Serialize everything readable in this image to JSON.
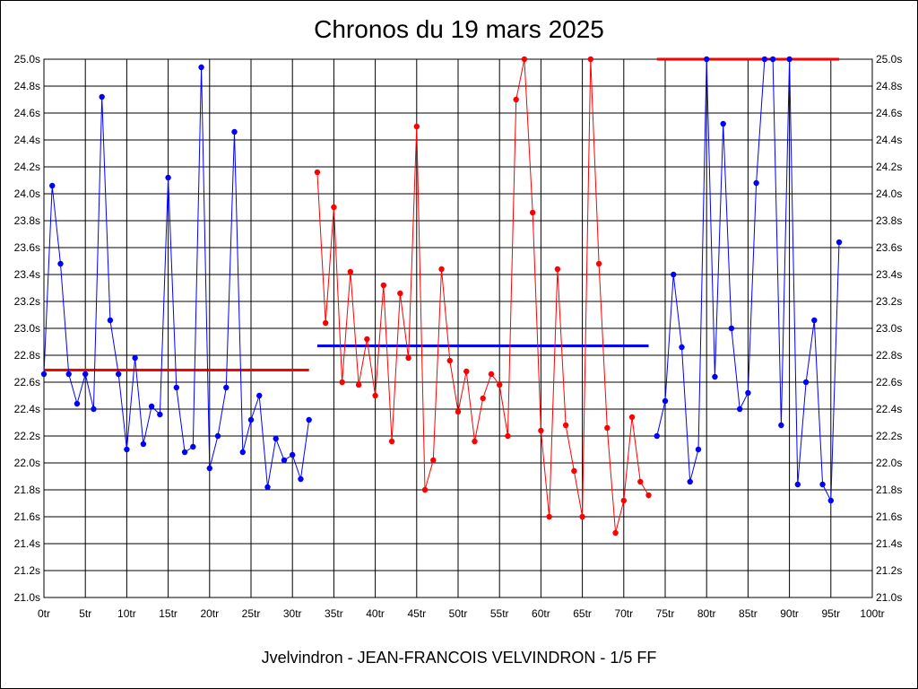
{
  "chart_data": {
    "type": "line",
    "title": "Chronos du 19 mars 2025",
    "footer": "Jvelvindron - JEAN-FRANCOIS VELVINDRON - 1/5 FF",
    "xlabel": "",
    "ylabel": "",
    "xlim": [
      0,
      100
    ],
    "ylim": [
      21.0,
      25.0
    ],
    "grid": true,
    "x_ticks": [
      0,
      5,
      10,
      15,
      20,
      25,
      30,
      35,
      40,
      45,
      50,
      55,
      60,
      65,
      70,
      75,
      80,
      85,
      90,
      95,
      100
    ],
    "x_tick_labels": [
      "0tr",
      "5tr",
      "10tr",
      "15tr",
      "20tr",
      "25tr",
      "30tr",
      "35tr",
      "40tr",
      "45tr",
      "50tr",
      "55tr",
      "60tr",
      "65tr",
      "70tr",
      "75tr",
      "80tr",
      "85tr",
      "90tr",
      "95tr",
      "100tr"
    ],
    "y_ticks": [
      21.0,
      21.2,
      21.4,
      21.6,
      21.8,
      22.0,
      22.2,
      22.4,
      22.6,
      22.8,
      23.0,
      23.2,
      23.4,
      23.6,
      23.8,
      24.0,
      24.2,
      24.4,
      24.6,
      24.8,
      25.0
    ],
    "y_tick_labels": [
      "21.0s",
      "21.2s",
      "21.4s",
      "21.6s",
      "21.8s",
      "22.0s",
      "22.2s",
      "22.4s",
      "22.6s",
      "22.8s",
      "23.0s",
      "23.2s",
      "23.4s",
      "23.6s",
      "23.8s",
      "24.0s",
      "24.2s",
      "24.4s",
      "24.6s",
      "24.8s",
      "25.0s"
    ],
    "series": [
      {
        "color": "#0000ff",
        "x": [
          0,
          1,
          2,
          3,
          4,
          5,
          6,
          7,
          8,
          9,
          10,
          11,
          12,
          13,
          14,
          15,
          16,
          17,
          18,
          19,
          20,
          21,
          22,
          23,
          24,
          25,
          26,
          27,
          28,
          29,
          30,
          31,
          32
        ],
        "values": [
          22.66,
          24.06,
          23.48,
          22.66,
          22.44,
          22.66,
          22.4,
          24.72,
          23.06,
          22.66,
          22.1,
          22.78,
          22.14,
          22.42,
          22.36,
          24.12,
          22.56,
          22.08,
          22.12,
          24.94,
          21.96,
          22.2,
          22.56,
          24.46,
          22.08,
          22.32,
          22.5,
          21.82,
          22.18,
          22.02,
          22.06,
          21.88,
          22.32
        ]
      },
      {
        "color": "#ff0000",
        "x": [
          33,
          34,
          35,
          36,
          37,
          38,
          39,
          40,
          41,
          42,
          43,
          44,
          45,
          46,
          47,
          48,
          49,
          50,
          51,
          52,
          53,
          54,
          55,
          56,
          57,
          58,
          59,
          60,
          61,
          62,
          63,
          64,
          65,
          66,
          67,
          68,
          69,
          70,
          71,
          72,
          73
        ],
        "values": [
          24.16,
          23.04,
          23.9,
          22.6,
          23.42,
          22.58,
          22.92,
          22.5,
          23.32,
          22.16,
          23.26,
          22.78,
          24.5,
          21.8,
          22.02,
          23.44,
          22.76,
          22.38,
          22.68,
          22.16,
          22.48,
          22.66,
          22.58,
          22.2,
          24.7,
          25.0,
          23.86,
          22.24,
          21.6,
          23.44,
          22.28,
          21.94,
          21.6,
          25.0,
          23.48,
          22.26,
          21.48,
          21.72,
          22.34,
          21.86,
          21.76
        ]
      },
      {
        "color": "#0000ff",
        "x": [
          74,
          75,
          76,
          77,
          78,
          79,
          80,
          81,
          82,
          83,
          84,
          85,
          86,
          87,
          88,
          89,
          90,
          91,
          92,
          93,
          94,
          95,
          96
        ],
        "values": [
          22.2,
          22.46,
          23.4,
          22.86,
          21.86,
          22.1,
          25.0,
          22.64,
          24.52,
          23.0,
          22.4,
          22.52,
          24.08,
          25.0,
          25.0,
          22.28,
          25.0,
          21.84,
          22.6,
          23.06,
          21.84,
          21.72,
          23.64
        ]
      }
    ],
    "averages": [
      {
        "color": "#ff0000",
        "x": [
          0,
          32
        ],
        "value": 22.69
      },
      {
        "color": "#0000ff",
        "x": [
          33,
          73
        ],
        "value": 22.87
      },
      {
        "color": "#ff0000",
        "x": [
          74,
          96
        ],
        "value": 25.0
      }
    ]
  }
}
